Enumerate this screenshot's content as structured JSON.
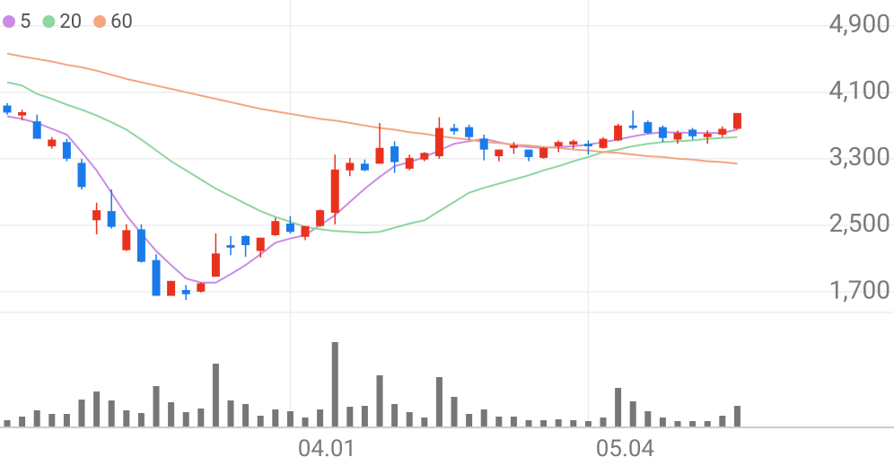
{
  "chart_data": {
    "type": "candlestick",
    "categories": [
      null,
      null,
      null,
      null,
      null,
      null,
      null,
      null,
      null,
      null,
      null,
      null,
      null,
      null,
      null,
      null,
      null,
      null,
      null,
      "04.01",
      null,
      null,
      null,
      null,
      null,
      null,
      null,
      null,
      null,
      null,
      null,
      null,
      null,
      null,
      null,
      null,
      null,
      null,
      null,
      "05.04",
      null,
      null,
      null,
      null,
      null,
      null,
      null,
      null,
      null,
      null
    ],
    "open": [
      3940,
      3820,
      3750,
      3450,
      3500,
      3250,
      2560,
      2670,
      2200,
      2450,
      2080,
      1650,
      1720,
      1700,
      1880,
      2260,
      2370,
      2190,
      2380,
      2520,
      2360,
      2490,
      2650,
      3160,
      3240,
      3240,
      3450,
      3180,
      3290,
      3330,
      3670,
      3680,
      3540,
      3330,
      3430,
      3410,
      3310,
      3450,
      3470,
      3480,
      3430,
      3520,
      3700,
      3740,
      3680,
      3530,
      3650,
      3560,
      3590,
      3660
    ],
    "high": [
      3970,
      3890,
      3830,
      3560,
      3540,
      3300,
      2770,
      2930,
      2510,
      2510,
      2150,
      1830,
      1780,
      1810,
      2400,
      2370,
      2380,
      2350,
      2590,
      2610,
      2490,
      2690,
      3350,
      3310,
      3290,
      3730,
      3510,
      3350,
      3380,
      3800,
      3720,
      3710,
      3590,
      3410,
      3500,
      3410,
      3440,
      3520,
      3530,
      3520,
      3560,
      3720,
      3880,
      3760,
      3700,
      3640,
      3670,
      3640,
      3690,
      3850
    ],
    "low": [
      3830,
      3760,
      3540,
      3420,
      3270,
      2930,
      2390,
      2460,
      2190,
      2050,
      1650,
      1650,
      1600,
      1690,
      1880,
      2140,
      2120,
      2110,
      2370,
      2400,
      2320,
      2480,
      2510,
      3090,
      3150,
      3240,
      3130,
      3160,
      3270,
      3300,
      3590,
      3530,
      3280,
      3270,
      3360,
      3270,
      3300,
      3380,
      3420,
      3350,
      3420,
      3510,
      3650,
      3600,
      3500,
      3480,
      3530,
      3480,
      3560,
      3650
    ],
    "close": [
      3855,
      3860,
      3540,
      3530,
      3300,
      2960,
      2680,
      2480,
      2440,
      2060,
      1650,
      1830,
      1670,
      1800,
      2160,
      2230,
      2260,
      2350,
      2550,
      2420,
      2490,
      2680,
      3170,
      3250,
      3160,
      3430,
      3260,
      3310,
      3370,
      3670,
      3630,
      3560,
      3410,
      3410,
      3460,
      3320,
      3430,
      3500,
      3510,
      3450,
      3540,
      3700,
      3670,
      3610,
      3550,
      3610,
      3570,
      3600,
      3660,
      3850
    ],
    "up_color": "#e8321e",
    "down_color": "#1a7be8",
    "series": [
      {
        "name": "5",
        "color": "#c98ce6",
        "values": [
          3810,
          3780,
          3730,
          3660,
          3590,
          3380,
          3160,
          2890,
          2620,
          2400,
          2190,
          2020,
          1860,
          1810,
          1810,
          1910,
          2020,
          2150,
          2290,
          2340,
          2380,
          2500,
          2620,
          2780,
          2940,
          3080,
          3210,
          3260,
          3320,
          3400,
          3480,
          3510,
          3540,
          3500,
          3460,
          3440,
          3430,
          3440,
          3450,
          3470,
          3500,
          3530,
          3570,
          3600,
          3620,
          3615,
          3610,
          3610,
          3610,
          3650
        ]
      },
      {
        "name": "20",
        "color": "#8fd6a0",
        "values": [
          4220,
          4180,
          4080,
          4020,
          3950,
          3890,
          3820,
          3740,
          3650,
          3530,
          3400,
          3270,
          3160,
          3050,
          2940,
          2850,
          2760,
          2670,
          2600,
          2540,
          2480,
          2450,
          2430,
          2420,
          2410,
          2420,
          2470,
          2520,
          2560,
          2670,
          2780,
          2890,
          2950,
          3000,
          3050,
          3100,
          3160,
          3210,
          3270,
          3320,
          3380,
          3410,
          3450,
          3480,
          3500,
          3510,
          3520,
          3540,
          3550,
          3560
        ]
      },
      {
        "name": "60",
        "color": "#f4a582",
        "values": [
          4565,
          4530,
          4500,
          4470,
          4430,
          4400,
          4360,
          4310,
          4260,
          4220,
          4180,
          4140,
          4100,
          4060,
          4020,
          3980,
          3940,
          3900,
          3870,
          3840,
          3810,
          3780,
          3760,
          3730,
          3700,
          3670,
          3650,
          3620,
          3600,
          3570,
          3550,
          3530,
          3500,
          3490,
          3470,
          3460,
          3440,
          3430,
          3410,
          3400,
          3380,
          3370,
          3350,
          3330,
          3320,
          3300,
          3290,
          3270,
          3260,
          3240
        ]
      }
    ],
    "ylim": [
      1450,
      5210
    ],
    "yticks": [
      {
        "value": 1700,
        "label": "1,700"
      },
      {
        "value": 2500,
        "label": "2,500"
      },
      {
        "value": 3300,
        "label": "3,300"
      },
      {
        "value": 4100,
        "label": "4,100"
      },
      {
        "value": 4900,
        "label": "4,900"
      }
    ],
    "grid": true,
    "legend": "top-left",
    "volume": {
      "color": "#777777",
      "ylim": [
        0,
        108
      ],
      "values": [
        7,
        11,
        18,
        14,
        14,
        30,
        39,
        29,
        18,
        15,
        45,
        27,
        16,
        20,
        70,
        29,
        25,
        12,
        19,
        17,
        10,
        19,
        94,
        22,
        23,
        57,
        25,
        16,
        10,
        55,
        33,
        14,
        19,
        11,
        11,
        7,
        7,
        8,
        7,
        6,
        10,
        43,
        28,
        17,
        10,
        6,
        6,
        6,
        12,
        23
      ]
    }
  }
}
